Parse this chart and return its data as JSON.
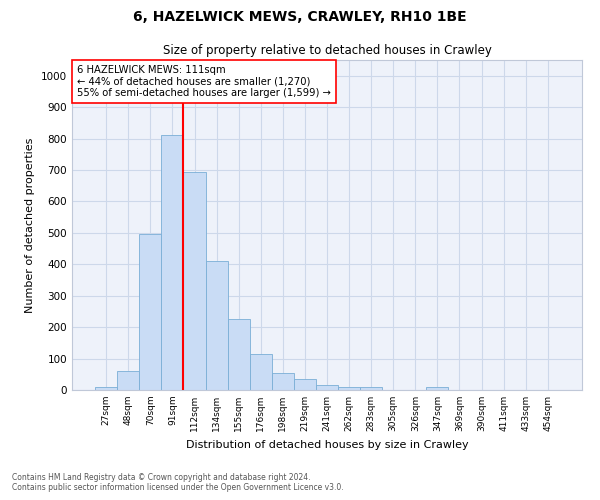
{
  "title": "6, HAZELWICK MEWS, CRAWLEY, RH10 1BE",
  "subtitle": "Size of property relative to detached houses in Crawley",
  "xlabel": "Distribution of detached houses by size in Crawley",
  "ylabel": "Number of detached properties",
  "bar_labels": [
    "27sqm",
    "48sqm",
    "70sqm",
    "91sqm",
    "112sqm",
    "134sqm",
    "155sqm",
    "176sqm",
    "198sqm",
    "219sqm",
    "241sqm",
    "262sqm",
    "283sqm",
    "305sqm",
    "326sqm",
    "347sqm",
    "369sqm",
    "390sqm",
    "411sqm",
    "433sqm",
    "454sqm"
  ],
  "bar_values": [
    8,
    60,
    495,
    810,
    695,
    410,
    225,
    113,
    53,
    35,
    15,
    11,
    10,
    0,
    0,
    8,
    0,
    0,
    0,
    0,
    0
  ],
  "bar_color": "#c9dcf5",
  "bar_edge_color": "#7aaed6",
  "vline_color": "red",
  "vline_pos": 3.5,
  "annotation_text": "6 HAZELWICK MEWS: 111sqm\n← 44% of detached houses are smaller (1,270)\n55% of semi-detached houses are larger (1,599) →",
  "annotation_box_color": "white",
  "annotation_box_edge": "red",
  "ylim": [
    0,
    1050
  ],
  "yticks": [
    0,
    100,
    200,
    300,
    400,
    500,
    600,
    700,
    800,
    900,
    1000
  ],
  "grid_color": "#cdd8ea",
  "footer_line1": "Contains HM Land Registry data © Crown copyright and database right 2024.",
  "footer_line2": "Contains public sector information licensed under the Open Government Licence v3.0.",
  "bg_color": "#eef2fa"
}
